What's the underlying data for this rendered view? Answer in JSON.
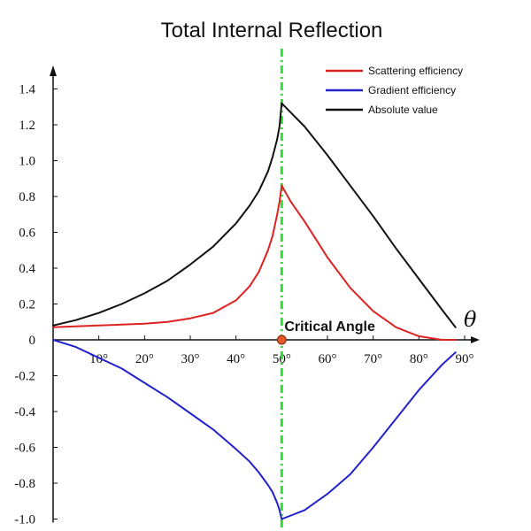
{
  "chart_data": {
    "type": "line",
    "title": "Total Internal Reflection",
    "xlabel": "θ",
    "ylabel": "",
    "xlim": [
      0,
      90
    ],
    "ylim": [
      -1.0,
      1.45
    ],
    "x_unit": "degrees",
    "xticks": [
      10,
      20,
      30,
      40,
      50,
      60,
      70,
      80,
      90
    ],
    "xtick_labels": [
      "10°",
      "20°",
      "30°",
      "40°",
      "50°",
      "60°",
      "70°",
      "80°",
      "90°"
    ],
    "yticks": [
      1.4,
      1.2,
      1.0,
      0.8,
      0.6,
      0.4,
      0.2,
      0,
      -0.2,
      -0.4,
      -0.6,
      -0.8,
      -1.0
    ],
    "ytick_labels": [
      "1.4",
      "1.2",
      "1.0",
      "0.8",
      "0.6",
      "0.4",
      "0.2",
      "0",
      "-0.2",
      "-0.4",
      "-0.6",
      "-0.8",
      "-1.0"
    ],
    "grid": false,
    "legend_position": "top-right",
    "critical_angle": {
      "x": 50,
      "label": "Critical Angle",
      "line_color": "#33dd33",
      "marker_color": "#e8572a"
    },
    "series": [
      {
        "name": "Scattering efficiency",
        "color": "#dd2222",
        "x": [
          0,
          5,
          10,
          15,
          20,
          25,
          30,
          35,
          40,
          43,
          45,
          47,
          48,
          49,
          49.5,
          50,
          52,
          55,
          58,
          60,
          65,
          70,
          75,
          80,
          85,
          88
        ],
        "y": [
          0.07,
          0.075,
          0.08,
          0.085,
          0.09,
          0.1,
          0.12,
          0.15,
          0.22,
          0.3,
          0.38,
          0.5,
          0.58,
          0.7,
          0.77,
          0.86,
          0.77,
          0.66,
          0.54,
          0.46,
          0.29,
          0.16,
          0.07,
          0.02,
          0.0,
          0.0
        ]
      },
      {
        "name": "Gradient efficiency",
        "color": "#2222cc",
        "x": [
          0,
          5,
          10,
          15,
          20,
          25,
          30,
          35,
          40,
          43,
          45,
          47,
          48,
          49,
          49.5,
          50,
          52,
          55,
          60,
          65,
          70,
          75,
          80,
          85,
          88
        ],
        "y": [
          0.0,
          -0.04,
          -0.1,
          -0.16,
          -0.24,
          -0.32,
          -0.41,
          -0.5,
          -0.61,
          -0.68,
          -0.74,
          -0.81,
          -0.85,
          -0.91,
          -0.95,
          -1.0,
          -0.98,
          -0.95,
          -0.86,
          -0.75,
          -0.6,
          -0.44,
          -0.28,
          -0.14,
          -0.07
        ]
      },
      {
        "name": "Absolute value",
        "color": "#111111",
        "x": [
          0,
          5,
          10,
          15,
          20,
          25,
          30,
          35,
          40,
          43,
          45,
          47,
          48,
          49,
          49.5,
          50,
          55,
          60,
          65,
          70,
          75,
          80,
          85,
          88
        ],
        "y": [
          0.08,
          0.11,
          0.15,
          0.2,
          0.26,
          0.33,
          0.42,
          0.52,
          0.65,
          0.75,
          0.83,
          0.94,
          1.02,
          1.12,
          1.19,
          1.32,
          1.19,
          1.03,
          0.86,
          0.69,
          0.51,
          0.34,
          0.17,
          0.07
        ]
      }
    ]
  }
}
